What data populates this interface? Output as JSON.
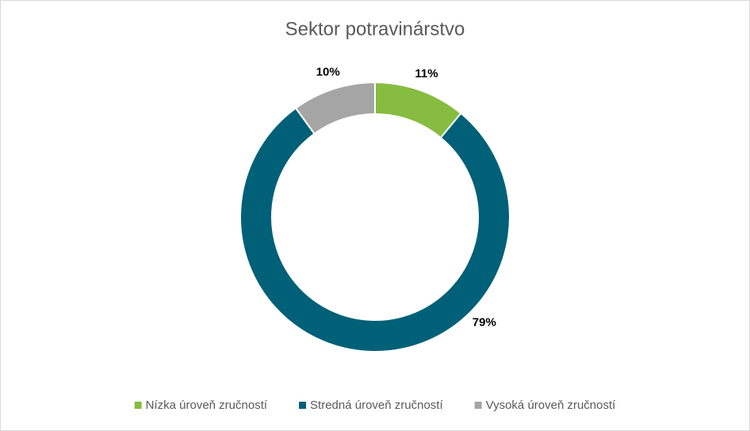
{
  "chart_data": {
    "type": "donut",
    "title": "Sektor potravinárstvo",
    "categories": [
      "Nízka úroveň zručností",
      "Stredná úroveň zručností",
      "Vysoká úroveň zručností"
    ],
    "values": [
      11,
      79,
      10
    ],
    "value_labels": [
      "11%",
      "79%",
      "10%"
    ],
    "colors": [
      "#86bc40",
      "#006078",
      "#a5a5a5"
    ],
    "legend": "bottom"
  }
}
